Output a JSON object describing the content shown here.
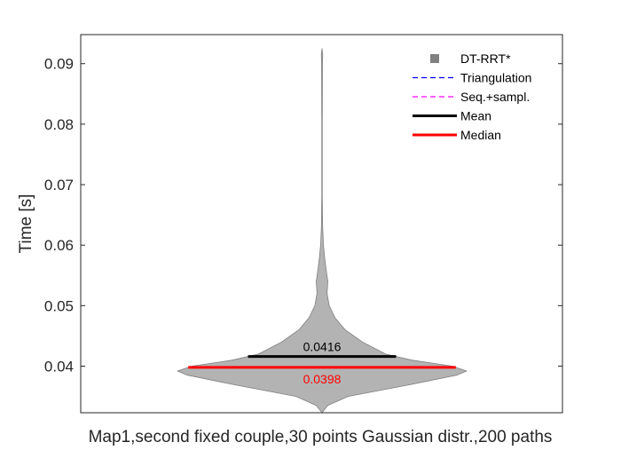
{
  "chart_data": {
    "type": "violin",
    "xlabel": "Map1,second fixed couple,30 points Gaussian distr.,200 paths",
    "ylabel": "Time [s]",
    "ylim": [
      0.0323,
      0.0948
    ],
    "yticks": [
      0.04,
      0.05,
      0.06,
      0.07,
      0.08,
      0.09
    ],
    "ytick_labels": [
      "0.04",
      "0.05",
      "0.06",
      "0.07",
      "0.08",
      "0.09"
    ],
    "grid": false,
    "legend_position": "top-right",
    "legend": [
      {
        "label": "DT-RRT*",
        "style": "marker",
        "color": "#808080"
      },
      {
        "label": "Triangulation",
        "style": "dashed",
        "color": "#0000ff"
      },
      {
        "label": "Seq.+sampl.",
        "style": "dashed",
        "color": "#ff00ff"
      },
      {
        "label": "Mean",
        "style": "solid",
        "color": "#000000"
      },
      {
        "label": "Median",
        "style": "solid",
        "color": "#ff0000"
      }
    ],
    "series": [
      {
        "name": "DT-RRT*",
        "color": "#b3b3b3",
        "y_min": 0.0323,
        "y_max": 0.0925,
        "mean": 0.0416,
        "median": 0.0398,
        "mean_label": "0.0416",
        "median_label": "0.0398",
        "mean_color": "#000000",
        "median_color": "#ff0000",
        "density_profile": [
          [
            0.0323,
            0.0
          ],
          [
            0.0335,
            0.04
          ],
          [
            0.035,
            0.18
          ],
          [
            0.037,
            0.62
          ],
          [
            0.0385,
            0.93
          ],
          [
            0.0392,
            1.0
          ],
          [
            0.04,
            0.9
          ],
          [
            0.041,
            0.62
          ],
          [
            0.042,
            0.44
          ],
          [
            0.044,
            0.28
          ],
          [
            0.046,
            0.16
          ],
          [
            0.048,
            0.09
          ],
          [
            0.05,
            0.05
          ],
          [
            0.052,
            0.035
          ],
          [
            0.054,
            0.04
          ],
          [
            0.056,
            0.028
          ],
          [
            0.058,
            0.018
          ],
          [
            0.06,
            0.01
          ],
          [
            0.063,
            0.004
          ],
          [
            0.068,
            0.002
          ],
          [
            0.08,
            0.002
          ],
          [
            0.09,
            0.003
          ],
          [
            0.0915,
            0.005
          ],
          [
            0.0925,
            0.0
          ]
        ]
      }
    ]
  }
}
